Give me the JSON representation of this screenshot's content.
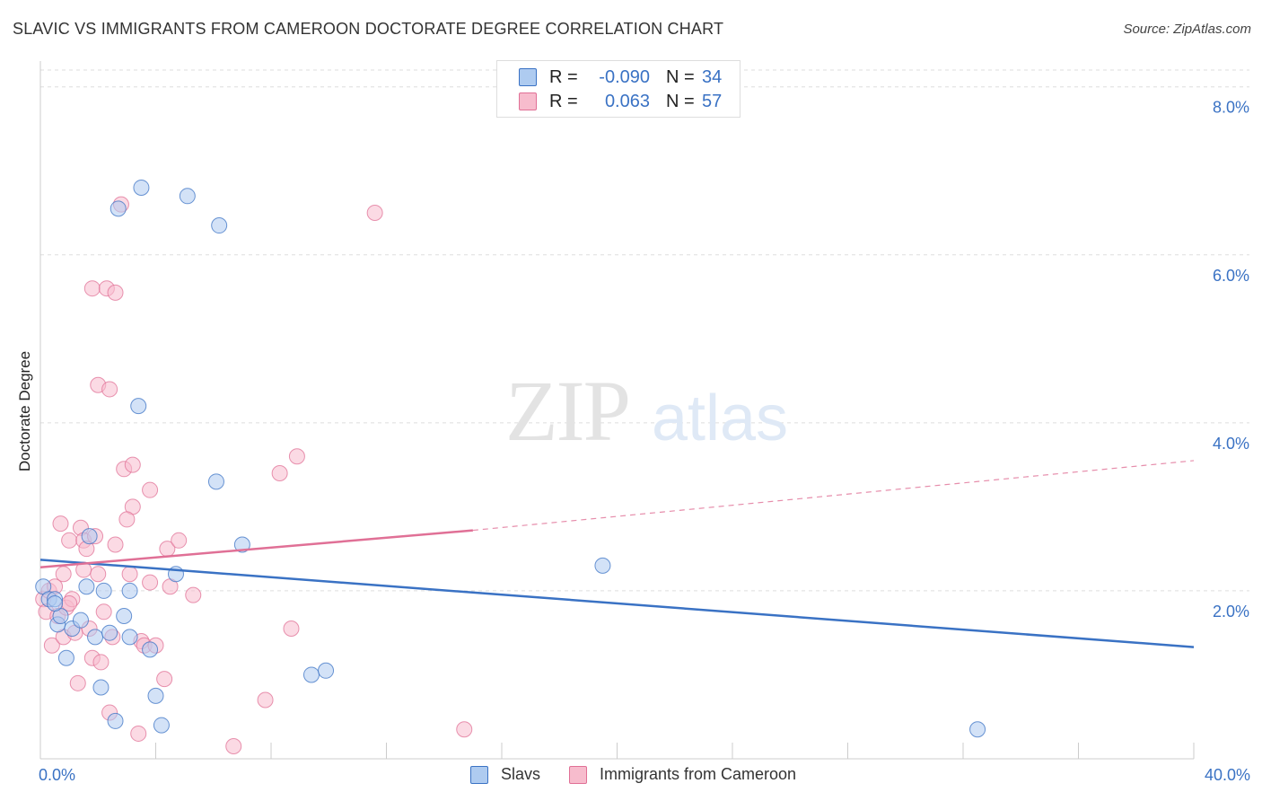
{
  "title": "SLAVIC VS IMMIGRANTS FROM CAMEROON DOCTORATE DEGREE CORRELATION CHART",
  "source": "Source: ZipAtlas.com",
  "watermark": {
    "zip": "ZIP",
    "atlas": "atlas"
  },
  "legend": {
    "rows": [
      {
        "r_label": "R =",
        "r_value": "-0.090",
        "n_label": "N =",
        "n_value": "34"
      },
      {
        "r_label": "R =",
        "r_value": "0.063",
        "n_label": "N =",
        "n_value": "57"
      }
    ]
  },
  "chart_data": {
    "type": "scatter",
    "title": "SLAVIC VS IMMIGRANTS FROM CAMEROON DOCTORATE DEGREE CORRELATION CHART",
    "ylabel": "Doctorate Degree",
    "xlabel": "",
    "xlim": [
      0,
      40
    ],
    "ylim": [
      0,
      8.2
    ],
    "x_tick_labels": [
      "0.0%",
      "40.0%"
    ],
    "y_ticks": [
      2,
      4,
      6,
      8
    ],
    "y_tick_labels": [
      "2.0%",
      "4.0%",
      "6.0%",
      "8.0%"
    ],
    "grid": true,
    "colors": {
      "slavs": "#3a72c4",
      "slavs_fill": "#aecbf0",
      "cameroon": "#e07096",
      "cameroon_fill": "#f7bccd"
    },
    "series": [
      {
        "name": "Slavs",
        "points": [
          [
            0.1,
            2.05
          ],
          [
            0.3,
            1.9
          ],
          [
            0.5,
            1.9
          ],
          [
            0.6,
            1.6
          ],
          [
            0.7,
            1.7
          ],
          [
            0.9,
            1.2
          ],
          [
            1.1,
            1.55
          ],
          [
            1.4,
            1.65
          ],
          [
            1.6,
            2.05
          ],
          [
            1.7,
            2.65
          ],
          [
            1.9,
            1.45
          ],
          [
            2.1,
            0.85
          ],
          [
            2.2,
            2.0
          ],
          [
            2.4,
            1.5
          ],
          [
            2.6,
            0.45
          ],
          [
            2.7,
            6.55
          ],
          [
            2.9,
            1.7
          ],
          [
            3.1,
            1.45
          ],
          [
            3.1,
            2.0
          ],
          [
            3.4,
            4.2
          ],
          [
            3.5,
            6.8
          ],
          [
            3.8,
            1.3
          ],
          [
            4.0,
            0.75
          ],
          [
            4.2,
            0.4
          ],
          [
            4.7,
            2.2
          ],
          [
            5.1,
            6.7
          ],
          [
            6.1,
            3.3
          ],
          [
            6.2,
            6.35
          ],
          [
            7.0,
            2.55
          ],
          [
            9.4,
            1.0
          ],
          [
            9.9,
            1.05
          ],
          [
            19.5,
            2.3
          ],
          [
            32.5,
            0.35
          ],
          [
            0.5,
            1.85
          ]
        ]
      },
      {
        "name": "Immigrants from Cameroon",
        "points": [
          [
            0.1,
            1.9
          ],
          [
            0.2,
            1.75
          ],
          [
            0.3,
            2.0
          ],
          [
            0.4,
            1.35
          ],
          [
            0.5,
            2.05
          ],
          [
            0.6,
            1.7
          ],
          [
            0.7,
            2.8
          ],
          [
            0.8,
            1.45
          ],
          [
            0.8,
            2.2
          ],
          [
            0.9,
            1.8
          ],
          [
            1.0,
            2.6
          ],
          [
            1.1,
            1.9
          ],
          [
            1.2,
            1.5
          ],
          [
            1.3,
            0.9
          ],
          [
            1.4,
            2.75
          ],
          [
            1.5,
            2.25
          ],
          [
            1.5,
            2.6
          ],
          [
            1.6,
            2.5
          ],
          [
            1.7,
            1.55
          ],
          [
            1.8,
            1.2
          ],
          [
            1.8,
            5.6
          ],
          [
            1.9,
            2.65
          ],
          [
            2.0,
            4.45
          ],
          [
            2.0,
            2.2
          ],
          [
            2.1,
            1.15
          ],
          [
            2.2,
            1.75
          ],
          [
            2.3,
            5.6
          ],
          [
            2.4,
            0.55
          ],
          [
            2.4,
            4.4
          ],
          [
            2.5,
            1.45
          ],
          [
            2.6,
            5.55
          ],
          [
            2.6,
            2.55
          ],
          [
            2.8,
            6.6
          ],
          [
            2.9,
            3.45
          ],
          [
            3.1,
            2.2
          ],
          [
            3.2,
            3.5
          ],
          [
            3.2,
            3.0
          ],
          [
            3.4,
            0.3
          ],
          [
            3.5,
            1.4
          ],
          [
            3.6,
            1.35
          ],
          [
            3.8,
            2.1
          ],
          [
            3.8,
            3.2
          ],
          [
            4.0,
            1.35
          ],
          [
            4.3,
            0.95
          ],
          [
            4.4,
            2.5
          ],
          [
            4.5,
            2.05
          ],
          [
            4.8,
            2.6
          ],
          [
            5.3,
            1.95
          ],
          [
            6.7,
            0.15
          ],
          [
            7.8,
            0.7
          ],
          [
            8.3,
            3.4
          ],
          [
            8.7,
            1.55
          ],
          [
            8.9,
            3.6
          ],
          [
            11.6,
            6.5
          ],
          [
            14.7,
            0.35
          ],
          [
            3.0,
            2.85
          ],
          [
            1.0,
            1.85
          ]
        ]
      }
    ],
    "trendlines": [
      {
        "series": "Slavs",
        "x": [
          0,
          40
        ],
        "y": [
          2.37,
          1.33
        ]
      },
      {
        "series": "Immigrants from Cameroon",
        "x_solid": [
          0,
          15
        ],
        "y_solid": [
          2.28,
          2.72
        ],
        "x_dashed": [
          15,
          40
        ],
        "y_dashed": [
          2.72,
          3.55
        ]
      }
    ]
  },
  "bottom_legend": [
    "Slavs",
    "Immigrants from Cameroon"
  ]
}
